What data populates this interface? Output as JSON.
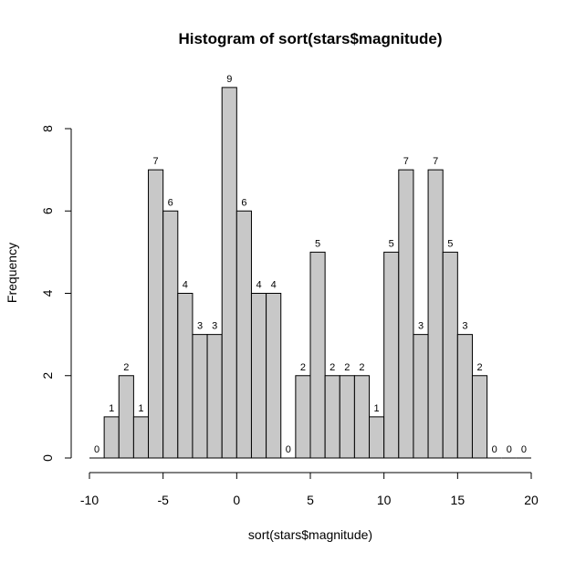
{
  "chart_data": {
    "type": "bar",
    "title": "Histogram of sort(stars$magnitude)",
    "xlabel": "sort(stars$magnitude)",
    "ylabel": "Frequency",
    "xlim": [
      -10,
      20
    ],
    "ylim": [
      0,
      9
    ],
    "bin_width": 1,
    "bins_start": [
      -10,
      -9,
      -8,
      -7,
      -6,
      -5,
      -4,
      -3,
      -2,
      -1,
      0,
      1,
      2,
      3,
      4,
      5,
      6,
      7,
      8,
      9,
      10,
      11,
      12,
      13,
      14,
      15,
      16,
      17,
      18,
      19
    ],
    "values": [
      0,
      1,
      2,
      1,
      7,
      6,
      4,
      3,
      3,
      9,
      6,
      4,
      4,
      0,
      2,
      5,
      2,
      2,
      2,
      1,
      5,
      7,
      3,
      7,
      5,
      3,
      2,
      0,
      0,
      0
    ],
    "x_ticks": [
      -10,
      -5,
      0,
      5,
      10,
      15,
      20
    ],
    "y_ticks": [
      0,
      2,
      4,
      6,
      8
    ],
    "bar_fill": "#c8c8c8",
    "grid": false
  }
}
